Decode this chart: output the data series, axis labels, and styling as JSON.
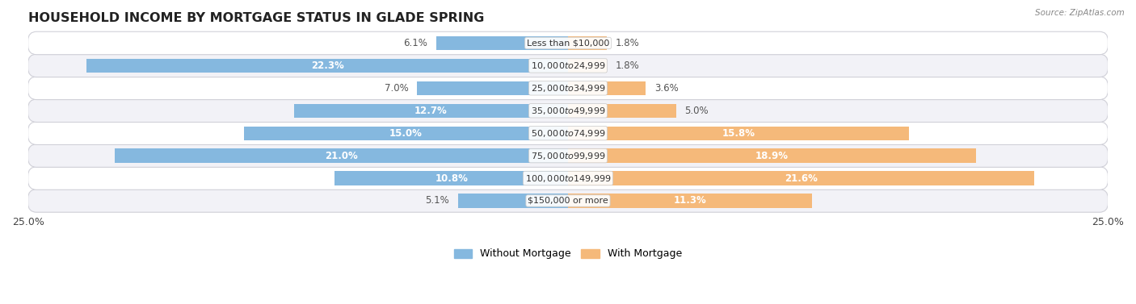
{
  "title": "HOUSEHOLD INCOME BY MORTGAGE STATUS IN GLADE SPRING",
  "source": "Source: ZipAtlas.com",
  "categories": [
    "Less than $10,000",
    "$10,000 to $24,999",
    "$25,000 to $34,999",
    "$35,000 to $49,999",
    "$50,000 to $74,999",
    "$75,000 to $99,999",
    "$100,000 to $149,999",
    "$150,000 or more"
  ],
  "without_mortgage": [
    6.1,
    22.3,
    7.0,
    12.7,
    15.0,
    21.0,
    10.8,
    5.1
  ],
  "with_mortgage": [
    1.8,
    1.8,
    3.6,
    5.0,
    15.8,
    18.9,
    21.6,
    11.3
  ],
  "blue_color": "#85b8df",
  "orange_color": "#f5b97a",
  "xlim": 25.0,
  "bar_height": 0.62,
  "title_fontsize": 11.5,
  "label_fontsize": 8.5,
  "category_fontsize": 8,
  "legend_fontsize": 9,
  "axis_label_fontsize": 9,
  "fig_width": 14.06,
  "fig_height": 3.77
}
